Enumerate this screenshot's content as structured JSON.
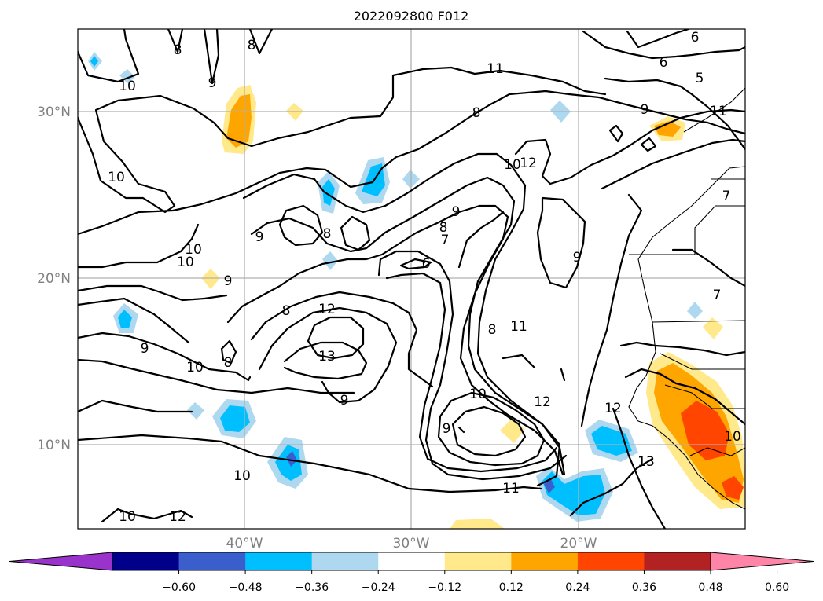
{
  "title": "2022092800 F012",
  "axes": {
    "lat_ticks": [
      "30°N",
      "20°N",
      "10°N"
    ],
    "lon_ticks": [
      "40°W",
      "30°W",
      "20°W"
    ]
  },
  "colorbar": {
    "ticks": [
      "−0.60",
      "−0.48",
      "−0.36",
      "−0.24",
      "−0.12",
      "0.12",
      "0.24",
      "0.36",
      "0.48",
      "0.60"
    ],
    "colors": [
      "#9933cc",
      "#00008b",
      "#3a5fcd",
      "#00bfff",
      "#add8f0",
      "#ffffff",
      "#ffe98a",
      "#ffa500",
      "#ff4500",
      "#b22222",
      "#ff85a8"
    ]
  },
  "contour_labels": [
    "8",
    "8",
    "9",
    "10",
    "10",
    "10",
    "9",
    "8",
    "9",
    "9",
    "10",
    "10",
    "8",
    "8",
    "12",
    "13",
    "9",
    "10",
    "10",
    "12",
    "11",
    "10",
    "9",
    "11",
    "8",
    "10",
    "12",
    "9",
    "8",
    "7",
    "9",
    "6",
    "8",
    "11",
    "12",
    "12",
    "13",
    "7",
    "6",
    "5",
    "6",
    "7",
    "9",
    "11",
    "10"
  ]
}
